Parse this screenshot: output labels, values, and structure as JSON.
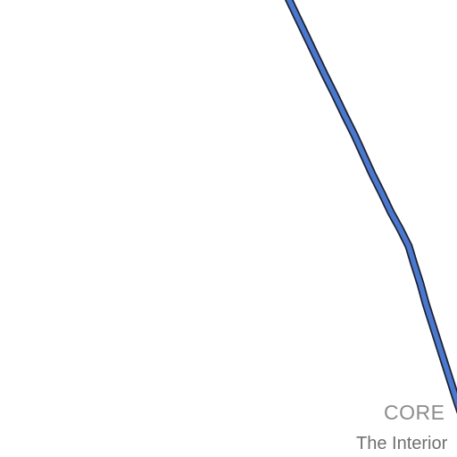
{
  "map": {
    "colors": {
      "background": "#ffffff",
      "route_fill": "#4a78cf",
      "route_casing": "#1d2230",
      "label_primary": "#8c8c8c",
      "label_secondary": "#6f6f6f"
    },
    "labels": {
      "district": "CORE",
      "area": "The Interior"
    }
  }
}
